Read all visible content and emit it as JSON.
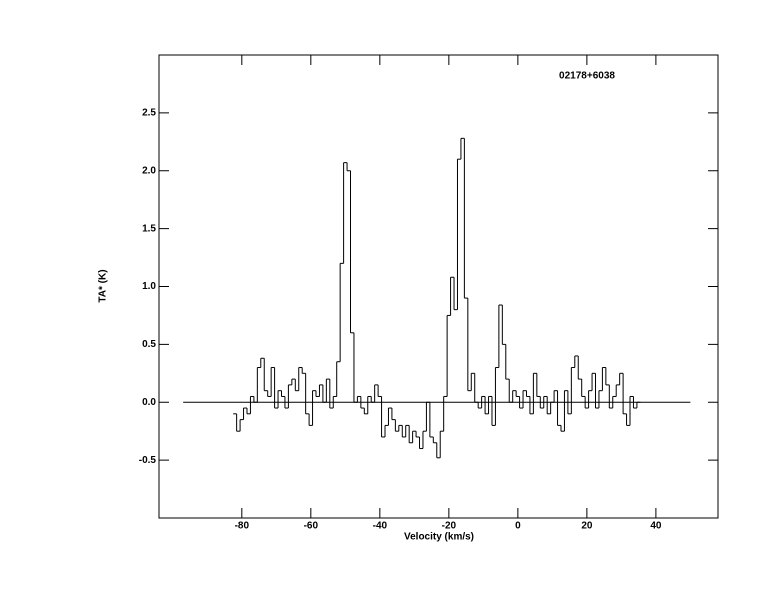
{
  "chart_data": {
    "type": "step",
    "annotation": "02178+6038",
    "x_label": "Velocity (km/s)",
    "y_label": "TA* (K)",
    "x": [
      -82,
      -81,
      -80,
      -79,
      -78,
      -77,
      -76,
      -75,
      -74,
      -73,
      -72,
      -71,
      -70,
      -69,
      -68,
      -67,
      -66,
      -65,
      -64,
      -63,
      -62,
      -61,
      -60,
      -59,
      -58,
      -57,
      -56,
      -55,
      -54,
      -53,
      -52,
      -51,
      -50,
      -49,
      -48,
      -47,
      -46,
      -45,
      -44,
      -43,
      -42,
      -41,
      -40,
      -39,
      -38,
      -37,
      -36,
      -35,
      -34,
      -33,
      -32,
      -31,
      -30,
      -29,
      -28,
      -27,
      -26,
      -25,
      -24,
      -23,
      -22,
      -21,
      -20,
      -19,
      -18,
      -17,
      -16,
      -15,
      -14,
      -13,
      -12,
      -11,
      -10,
      -9,
      -8,
      -7,
      -6,
      -5,
      -4,
      -3,
      -2,
      -1,
      0,
      1,
      2,
      3,
      4,
      5,
      6,
      7,
      8,
      9,
      10,
      11,
      12,
      13,
      14,
      15,
      16,
      17,
      18,
      19,
      20,
      21,
      22,
      23,
      24,
      25,
      26,
      27,
      28,
      29,
      30,
      31,
      32,
      33,
      34,
      35
    ],
    "values": [
      -0.1,
      -0.25,
      -0.15,
      -0.05,
      -0.1,
      0.05,
      0.0,
      0.3,
      0.38,
      0.1,
      0.05,
      0.3,
      -0.05,
      0.1,
      0.05,
      -0.05,
      0.15,
      0.2,
      0.1,
      0.3,
      0.25,
      -0.1,
      -0.2,
      0.1,
      0.05,
      0.15,
      0.0,
      0.2,
      -0.05,
      0.05,
      0.35,
      1.2,
      2.07,
      2.0,
      0.6,
      0.0,
      0.05,
      -0.05,
      -0.1,
      0.05,
      0.0,
      0.15,
      0.05,
      -0.3,
      -0.2,
      -0.05,
      -0.15,
      -0.25,
      -0.2,
      -0.3,
      -0.2,
      -0.35,
      -0.25,
      -0.3,
      -0.4,
      -0.25,
      0.0,
      -0.3,
      -0.35,
      -0.48,
      -0.25,
      0.05,
      0.75,
      1.08,
      0.8,
      2.1,
      2.28,
      0.9,
      0.1,
      0.25,
      0.0,
      -0.05,
      0.05,
      -0.1,
      0.05,
      -0.2,
      0.3,
      0.84,
      0.5,
      0.2,
      0.0,
      0.1,
      0.05,
      -0.05,
      0.1,
      0.05,
      -0.1,
      0.25,
      0.05,
      -0.05,
      0.05,
      -0.1,
      0.0,
      0.1,
      -0.2,
      -0.25,
      0.1,
      -0.1,
      0.3,
      0.4,
      0.2,
      0.05,
      -0.05,
      0.1,
      0.25,
      -0.05,
      0.1,
      0.3,
      0.15,
      -0.05,
      0.05,
      0.15,
      0.25,
      -0.1,
      -0.2,
      0.05,
      -0.05,
      0.0
    ],
    "color": "#000000",
    "baseline": {
      "x": [
        -97,
        50
      ],
      "y": 0
    },
    "xlim": [
      -104,
      58
    ],
    "xticks": [
      -80,
      -60,
      -40,
      -20,
      0,
      20,
      40
    ],
    "ylim": [
      -1,
      3
    ],
    "yticks": [
      -0.5,
      {
        "value": 0,
        "label": "0.0"
      },
      0.5,
      {
        "value": 1,
        "label": "1.0"
      },
      1.5,
      {
        "value": 2,
        "label": "2.0"
      },
      2.5
    ]
  }
}
